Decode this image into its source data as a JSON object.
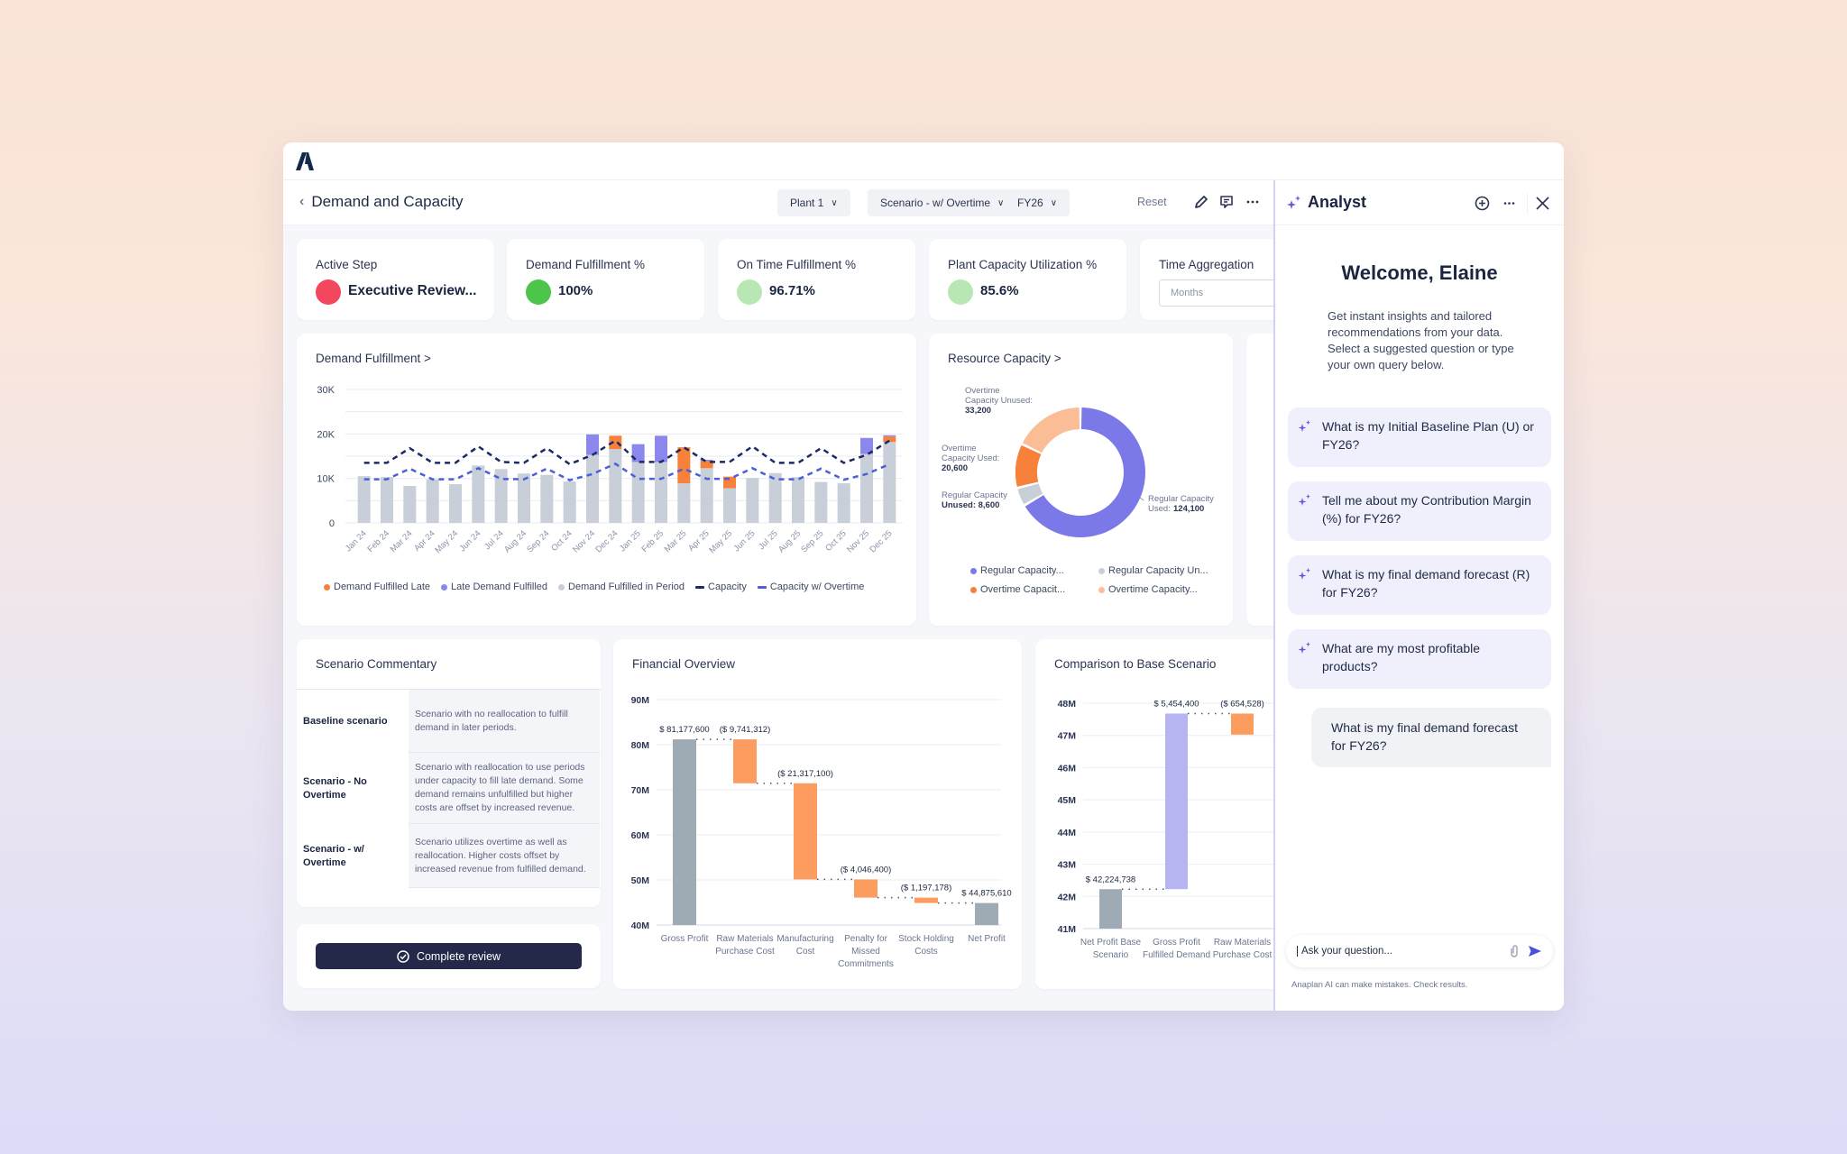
{
  "app": {
    "logo": "anaplan-logo",
    "page_title": "Demand and Capacity",
    "filters": [
      {
        "label": "Plant 1"
      },
      {
        "label": "Scenario - w/ Overtime"
      },
      {
        "label": "FY26"
      }
    ],
    "reset_label": "Reset",
    "header_icons": [
      "pencil-icon",
      "comment-icon",
      "more-icon"
    ]
  },
  "kpis": [
    {
      "label": "Active Step",
      "value": "Executive Review...",
      "color": "#f2475e"
    },
    {
      "label": "Demand Fulfillment %",
      "value": "100%",
      "color": "#4cc54a"
    },
    {
      "label": "On Time Fulfillment %",
      "value": "96.71%",
      "color": "#b9e7b3"
    },
    {
      "label": "Plant Capacity Utilization %",
      "value": "85.6%",
      "color": "#b9e7b3"
    },
    {
      "label": "Time Aggregation",
      "select_value": "Months"
    }
  ],
  "demand_chart": {
    "title": "Demand Fulfillment >",
    "legend": [
      {
        "label": "Demand Fulfilled Late",
        "color": "#f7803a",
        "shape": "dot"
      },
      {
        "label": "Late Demand Fulfilled",
        "color": "#8c87ec",
        "shape": "dot"
      },
      {
        "label": "Demand Fulfilled in Period",
        "color": "#c8cfd8",
        "shape": "dot"
      },
      {
        "label": "Capacity",
        "color": "#1c2a63",
        "shape": "dash"
      },
      {
        "label": "Capacity w/ Overtime",
        "color": "#4b5fd6",
        "shape": "dash"
      }
    ]
  },
  "resource_chart": {
    "title": "Resource Capacity >",
    "labels": [
      {
        "name": "Overtime Capacity Unused:",
        "value": "33,200"
      },
      {
        "name": "Overtime Capacity Used:",
        "value": "20,600"
      },
      {
        "name": "Regular Capacity Unused:",
        "value": "8,600"
      },
      {
        "name": "Regular Capacity Used:",
        "value": "124,100"
      }
    ],
    "legend": [
      {
        "label": "Regular Capacity...",
        "color": "#7b79e8"
      },
      {
        "label": "Regular Capacity Un...",
        "color": "#c8cfd8"
      },
      {
        "label": "Overtime Capacit...",
        "color": "#f7803a"
      },
      {
        "label": "Overtime Capacity...",
        "color": "#fbbd96"
      }
    ]
  },
  "commentary": {
    "title": "Scenario Commentary",
    "rows": [
      {
        "label": "Baseline scenario",
        "text": "Scenario with no reallocation to fulfill demand in later periods."
      },
      {
        "label": "Scenario - No Overtime",
        "text": "Scenario with reallocation to use periods under capacity to fill late demand. Some demand remains unfulfilled but higher costs are offset by increased revenue."
      },
      {
        "label": "Scenario - w/ Overtime",
        "text": "Scenario utilizes overtime as well as reallocation. Higher costs offset by increased revenue from fulfilled demand."
      }
    ],
    "complete_button": "Complete review"
  },
  "financial_chart": {
    "title": "Financial Overview"
  },
  "comparison_chart": {
    "title": "Comparison to Base Scenario"
  },
  "analyst": {
    "title": "Analyst",
    "welcome": "Welcome, Elaine",
    "intro": "Get instant insights and tailored recommendations from your data. Select a suggested question or type your own query below.",
    "suggestions": [
      "What is my Initial Baseline Plan (U) or FY26?",
      "Tell me about my Contribution Margin (%) for FY26?",
      "What is my final demand forecast (R) for FY26?",
      "What are my most profitable products?"
    ],
    "user_message": "What is my final demand forecast for FY26?",
    "input_placeholder": "Ask your question...",
    "disclaimer": "Anaplan AI can make mistakes. Check results."
  },
  "chart_data": [
    {
      "type": "bar",
      "title": "Demand Fulfillment",
      "categories": [
        "Jan 24",
        "Feb 24",
        "Mar 24",
        "Apr 24",
        "May 24",
        "Jun 24",
        "Jul 24",
        "Aug 24",
        "Sep 24",
        "Oct 24",
        "Nov 24",
        "Dec 24",
        "Jan 25",
        "Feb 25",
        "Mar 25",
        "Apr 25",
        "May 25",
        "Jun 25",
        "Jul 25",
        "Aug 25",
        "Sep 25",
        "Oct 25",
        "Nov 25",
        "Dec 25"
      ],
      "ylim": [
        0,
        30000
      ],
      "yticks": [
        "0",
        "10K",
        "20K",
        "30K"
      ],
      "stacked": true,
      "series": [
        {
          "name": "Demand Fulfilled in Period",
          "type": "bar",
          "color": "#c8cfd8",
          "values": [
            10500,
            10300,
            8300,
            9800,
            8700,
            12900,
            12100,
            11100,
            10800,
            9300,
            15300,
            16600,
            13700,
            13700,
            8900,
            12300,
            7800,
            10100,
            11200,
            10300,
            9200,
            8900,
            15500,
            18200
          ]
        },
        {
          "name": "Demand Fulfilled Late",
          "type": "bar",
          "color": "#f7803a",
          "values": [
            0,
            0,
            0,
            0,
            0,
            0,
            0,
            0,
            0,
            0,
            0,
            3000,
            0,
            0,
            8100,
            1600,
            2600,
            0,
            0,
            0,
            0,
            0,
            0,
            1200
          ]
        },
        {
          "name": "Late Demand Fulfilled",
          "type": "bar",
          "color": "#8c87ec",
          "values": [
            0,
            0,
            0,
            0,
            0,
            0,
            0,
            0,
            0,
            0,
            4600,
            0,
            4000,
            5900,
            0,
            300,
            0,
            0,
            0,
            0,
            0,
            0,
            3600,
            300
          ]
        },
        {
          "name": "Capacity",
          "type": "line",
          "style": "dashed",
          "color": "#1c2a63",
          "values": [
            13500,
            13500,
            16800,
            13500,
            13500,
            17200,
            13700,
            13500,
            16800,
            13200,
            15300,
            18500,
            13700,
            13700,
            17000,
            13700,
            13700,
            17200,
            13500,
            13500,
            16800,
            13500,
            15300,
            18500
          ]
        },
        {
          "name": "Capacity w/ Overtime",
          "type": "line",
          "style": "dashed",
          "color": "#4b5fd6",
          "values": [
            9800,
            9800,
            12200,
            9800,
            9800,
            12300,
            9900,
            9800,
            12200,
            9600,
            11000,
            13300,
            9900,
            9900,
            12200,
            9900,
            9900,
            12300,
            9800,
            9800,
            12200,
            9700,
            11000,
            13200
          ]
        }
      ],
      "legend_position": "bottom",
      "grid": true
    },
    {
      "type": "pie",
      "title": "Resource Capacity",
      "donut": true,
      "categories": [
        "Regular Capacity Used",
        "Regular Capacity Unused",
        "Overtime Capacity Used",
        "Overtime Capacity Unused"
      ],
      "values": [
        124100,
        8600,
        20600,
        33200
      ],
      "colors": [
        "#7b79e8",
        "#c8cfd8",
        "#f7803a",
        "#fbbd96"
      ]
    },
    {
      "type": "bar",
      "subtype": "waterfall",
      "title": "Financial Overview",
      "categories": [
        "Gross Profit",
        "Raw Materials Purchase Cost",
        "Manufacturing Cost",
        "Penalty for Missed Commitments",
        "Stock Holding Costs",
        "Net Profit"
      ],
      "values": [
        81177600,
        -9741312,
        -21317100,
        -4046400,
        -1197178,
        44875610
      ],
      "labels": [
        "$ 81,177,600",
        "($ 9,741,312)",
        "($ 21,317,100)",
        "($ 4,046,400)",
        "($ 1,197,178)",
        "$ 44,875,610"
      ],
      "ylim": [
        40000000,
        90000000
      ],
      "yticks": [
        "40M",
        "50M",
        "60M",
        "70M",
        "80M",
        "90M"
      ],
      "colors": {
        "total": "#9eaab4",
        "decrease": "#fd9c5f"
      }
    },
    {
      "type": "bar",
      "subtype": "waterfall",
      "title": "Comparison to Base Scenario",
      "categories": [
        "Net Profit Base Scenario",
        "Gross Profit Fulfilled Demand",
        "Raw Materials Purchase Cost"
      ],
      "values": [
        42224738,
        5454400,
        -654528
      ],
      "labels": [
        "$ 42,224,738",
        "$ 5,454,400",
        "($ 654,528)"
      ],
      "ylim": [
        41000000,
        48000000
      ],
      "yticks": [
        "41M",
        "42M",
        "43M",
        "44M",
        "45M",
        "46M",
        "47M",
        "48M"
      ],
      "colors": {
        "total": "#9eaab4",
        "increase": "#b7b5f1",
        "decrease": "#fd9c5f"
      }
    }
  ]
}
